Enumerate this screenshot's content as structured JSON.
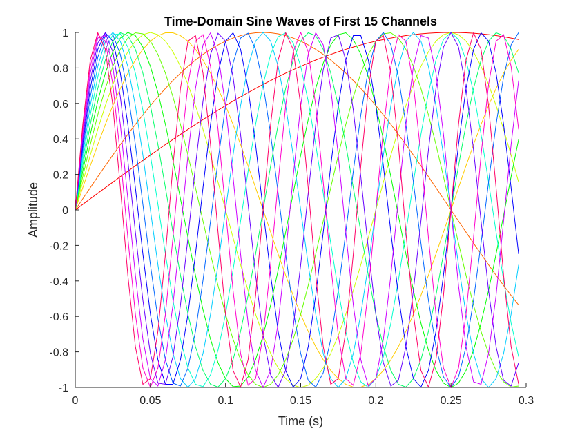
{
  "chart_data": {
    "type": "line",
    "title": "Time-Domain Sine Waves of First 15 Channels",
    "xlabel": "Time (s)",
    "ylabel": "Amplitude",
    "xlim": [
      0,
      0.3
    ],
    "ylim": [
      -1,
      1
    ],
    "x_ticks": [
      "0",
      "0.05",
      "0.1",
      "0.15",
      "0.2",
      "0.25",
      "0.3"
    ],
    "y_ticks": [
      "-1",
      "-0.8",
      "-0.6",
      "-0.4",
      "-0.2",
      "0",
      "0.2",
      "0.4",
      "0.6",
      "0.8",
      "1"
    ],
    "grid": false,
    "legend": "none",
    "sample_step_s": 0.005,
    "t_end_s": 0.295,
    "series": [
      {
        "frequency_hz": 1,
        "color": "#ff0000"
      },
      {
        "frequency_hz": 2,
        "color": "#ff6600"
      },
      {
        "frequency_hz": 4,
        "color": "#ffcc00"
      },
      {
        "frequency_hz": 5,
        "color": "#ccff00"
      },
      {
        "frequency_hz": 6,
        "color": "#66ff00"
      },
      {
        "frequency_hz": 7,
        "color": "#00ff00"
      },
      {
        "frequency_hz": 8,
        "color": "#00ff66"
      },
      {
        "frequency_hz": 9,
        "color": "#00ffcc"
      },
      {
        "frequency_hz": 10,
        "color": "#00ccff"
      },
      {
        "frequency_hz": 11,
        "color": "#0066ff"
      },
      {
        "frequency_hz": 12,
        "color": "#0000ff"
      },
      {
        "frequency_hz": 13,
        "color": "#6600ff"
      },
      {
        "frequency_hz": 14,
        "color": "#cc00ff"
      },
      {
        "frequency_hz": 15,
        "color": "#ff00cc"
      },
      {
        "frequency_hz": 16,
        "color": "#ff0066"
      }
    ]
  }
}
